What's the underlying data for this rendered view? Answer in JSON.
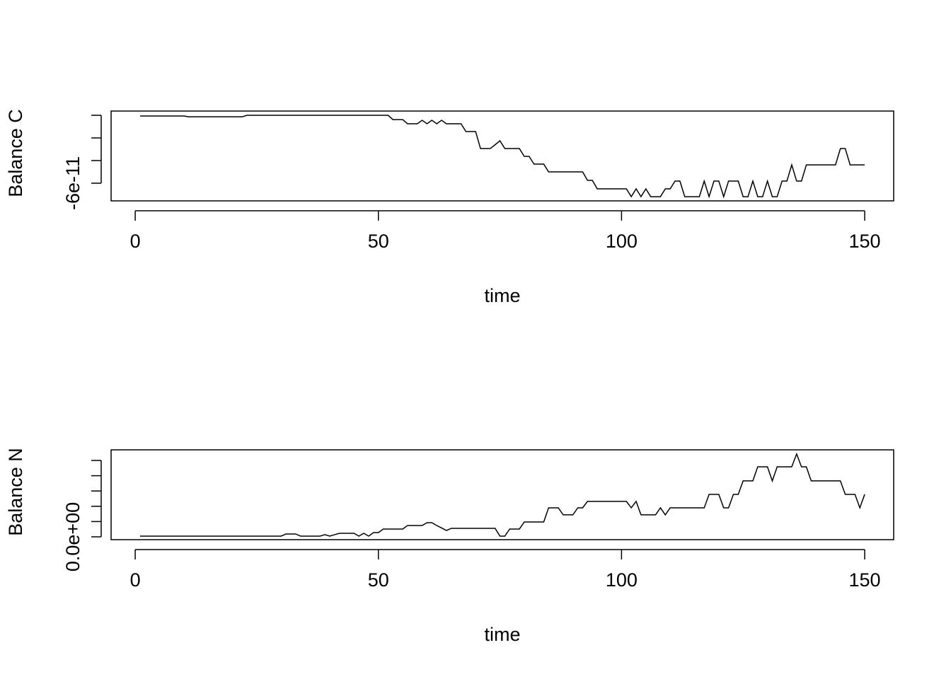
{
  "chart_data": [
    {
      "type": "line",
      "ylabel": "Balance C",
      "xlabel": "time",
      "x": [
        1,
        2,
        3,
        4,
        5,
        6,
        7,
        8,
        9,
        10,
        11,
        12,
        13,
        14,
        15,
        16,
        17,
        18,
        19,
        20,
        21,
        22,
        23,
        24,
        25,
        26,
        27,
        28,
        29,
        30,
        31,
        32,
        33,
        34,
        35,
        36,
        37,
        38,
        39,
        40,
        41,
        42,
        43,
        44,
        45,
        46,
        47,
        48,
        49,
        50,
        51,
        52,
        53,
        54,
        55,
        56,
        57,
        58,
        59,
        60,
        61,
        62,
        63,
        64,
        65,
        66,
        67,
        68,
        69,
        70,
        71,
        72,
        73,
        74,
        75,
        76,
        77,
        78,
        79,
        80,
        81,
        82,
        83,
        84,
        85,
        86,
        87,
        88,
        89,
        90,
        91,
        92,
        93,
        94,
        95,
        96,
        97,
        98,
        99,
        100,
        101,
        102,
        103,
        104,
        105,
        106,
        107,
        108,
        109,
        110,
        111,
        112,
        113,
        114,
        115,
        116,
        117,
        118,
        119,
        120,
        121,
        122,
        123,
        124,
        125,
        126,
        127,
        128,
        129,
        130,
        131,
        132,
        133,
        134,
        135,
        136,
        137,
        138,
        139,
        140,
        141,
        142,
        143,
        144,
        145,
        146,
        147,
        148,
        149,
        150
      ],
      "series": [
        {
          "color": "#000000",
          "values": [
            -6e-13,
            -6e-13,
            -6e-13,
            -6e-13,
            -6e-13,
            -6e-13,
            -6e-13,
            -6e-13,
            -6e-13,
            -6e-13,
            -1.3e-12,
            -1.3e-12,
            -1.3e-12,
            -1.3e-12,
            -1.3e-12,
            -1.3e-12,
            -1.3e-12,
            -1.3e-12,
            -1.3e-12,
            -1.3e-12,
            -1.3e-12,
            -1.3e-12,
            0,
            0,
            0,
            0,
            0,
            0,
            0,
            0,
            0,
            0,
            0,
            0,
            0,
            0,
            0,
            0,
            0,
            0,
            0,
            0,
            0,
            0,
            0,
            0,
            0,
            0,
            0,
            0,
            0,
            0,
            -3.8e-12,
            -3.8e-12,
            -3.8e-12,
            -7.5e-12,
            -7.5e-12,
            -7.5e-12,
            -4.4e-12,
            -7.5e-12,
            -4.4e-12,
            -7.5e-12,
            -4.4e-12,
            -7.5e-12,
            -7.5e-12,
            -7.5e-12,
            -7.5e-12,
            -1.44e-11,
            -1.44e-11,
            -1.44e-11,
            -2.94e-11,
            -2.94e-11,
            -2.94e-11,
            -2.6e-11,
            -2.25e-11,
            -2.94e-11,
            -2.94e-11,
            -2.94e-11,
            -2.94e-11,
            -3.63e-11,
            -3.63e-11,
            -4.31e-11,
            -4.31e-11,
            -4.31e-11,
            -5e-11,
            -5e-11,
            -5e-11,
            -5e-11,
            -5e-11,
            -5e-11,
            -5e-11,
            -5e-11,
            -5.75e-11,
            -5.75e-11,
            -6.5e-11,
            -6.5e-11,
            -6.5e-11,
            -6.5e-11,
            -6.5e-11,
            -6.5e-11,
            -6.5e-11,
            -7.19e-11,
            -6.5e-11,
            -7.19e-11,
            -6.5e-11,
            -7.19e-11,
            -7.19e-11,
            -7.19e-11,
            -6.5e-11,
            -6.5e-11,
            -5.81e-11,
            -5.81e-11,
            -7.19e-11,
            -7.19e-11,
            -7.19e-11,
            -7.19e-11,
            -5.81e-11,
            -7.19e-11,
            -5.81e-11,
            -5.81e-11,
            -7.19e-11,
            -5.81e-11,
            -5.81e-11,
            -5.81e-11,
            -7.19e-11,
            -7.19e-11,
            -5.81e-11,
            -7.19e-11,
            -7.19e-11,
            -5.81e-11,
            -7.19e-11,
            -7.19e-11,
            -5.81e-11,
            -5.81e-11,
            -4.38e-11,
            -5.81e-11,
            -5.81e-11,
            -4.38e-11,
            -4.38e-11,
            -4.38e-11,
            -4.38e-11,
            -4.38e-11,
            -4.38e-11,
            -4.38e-11,
            -2.94e-11,
            -2.94e-11,
            -4.38e-11,
            -4.38e-11,
            -4.38e-11,
            -4.38e-11
          ]
        }
      ],
      "xlim": [
        -4.96,
        155.96
      ],
      "xticks": [
        0,
        50,
        100,
        150
      ],
      "ylim": [
        -7.56e-11,
        3.75e-12
      ],
      "yticks": [
        -6e-11,
        {
          "value": -4e-11,
          "label": null
        },
        {
          "value": -2e-11,
          "label": null
        },
        {
          "value": 0,
          "label": null
        }
      ]
    },
    {
      "type": "line",
      "ylabel": "Balance N",
      "xlabel": "time",
      "x": [
        1,
        2,
        3,
        4,
        5,
        6,
        7,
        8,
        9,
        10,
        11,
        12,
        13,
        14,
        15,
        16,
        17,
        18,
        19,
        20,
        21,
        22,
        23,
        24,
        25,
        26,
        27,
        28,
        29,
        30,
        31,
        32,
        33,
        34,
        35,
        36,
        37,
        38,
        39,
        40,
        41,
        42,
        43,
        44,
        45,
        46,
        47,
        48,
        49,
        50,
        51,
        52,
        53,
        54,
        55,
        56,
        57,
        58,
        59,
        60,
        61,
        62,
        63,
        64,
        65,
        66,
        67,
        68,
        69,
        70,
        71,
        72,
        73,
        74,
        75,
        76,
        77,
        78,
        79,
        80,
        81,
        82,
        83,
        84,
        85,
        86,
        87,
        88,
        89,
        90,
        91,
        92,
        93,
        94,
        95,
        96,
        97,
        98,
        99,
        100,
        101,
        102,
        103,
        104,
        105,
        106,
        107,
        108,
        109,
        110,
        111,
        112,
        113,
        114,
        115,
        116,
        117,
        118,
        119,
        120,
        121,
        122,
        123,
        124,
        125,
        126,
        127,
        128,
        129,
        130,
        131,
        132,
        133,
        134,
        135,
        136,
        137,
        138,
        139,
        140,
        141,
        142,
        143,
        144,
        145,
        146,
        147,
        148,
        149,
        150
      ],
      "series": [
        {
          "color": "#000000",
          "values": [
            2.3e-13,
            2.3e-13,
            2.3e-13,
            2.3e-13,
            2.3e-13,
            2.3e-13,
            2.3e-13,
            2.3e-13,
            2.3e-13,
            2.3e-13,
            2.3e-13,
            2.3e-13,
            2.3e-13,
            2.3e-13,
            2.3e-13,
            2.3e-13,
            2.3e-13,
            2.3e-13,
            2.3e-13,
            2.3e-13,
            2.3e-13,
            2.3e-13,
            2.3e-13,
            2.3e-13,
            2.3e-13,
            2.3e-13,
            2.3e-13,
            2.3e-13,
            2.3e-13,
            2.3e-13,
            9.3e-13,
            9.3e-13,
            9.3e-13,
            2.3e-13,
            2.3e-13,
            2.3e-13,
            2.3e-13,
            2.3e-13,
            7e-13,
            2.3e-13,
            7e-13,
            1.16e-12,
            1.16e-12,
            1.16e-12,
            1.16e-12,
            2.3e-13,
            1.16e-12,
            2.3e-13,
            1.39e-12,
            1.39e-12,
            2.55e-12,
            2.55e-12,
            2.55e-12,
            2.55e-12,
            2.55e-12,
            3.7e-12,
            3.7e-12,
            3.7e-12,
            3.7e-12,
            4.63e-12,
            4.63e-12,
            3.7e-12,
            2.9e-12,
            2.08e-12,
            2.78e-12,
            2.78e-12,
            2.78e-12,
            2.78e-12,
            2.78e-12,
            2.78e-12,
            2.78e-12,
            2.78e-12,
            2.78e-12,
            2.78e-12,
            2.3e-13,
            2.3e-13,
            2.55e-12,
            2.55e-12,
            2.55e-12,
            4.86e-12,
            4.86e-12,
            4.86e-12,
            4.86e-12,
            4.86e-12,
            9.5e-12,
            9.5e-12,
            9.5e-12,
            7.2e-12,
            7.2e-12,
            7.2e-12,
            9.5e-12,
            9.5e-12,
            1.16e-11,
            1.16e-11,
            1.16e-11,
            1.16e-11,
            1.16e-11,
            1.16e-11,
            1.16e-11,
            1.16e-11,
            1.16e-11,
            9.5e-12,
            1.16e-11,
            7.2e-12,
            7.2e-12,
            7.2e-12,
            7.2e-12,
            9.5e-12,
            7.2e-12,
            9.5e-12,
            9.5e-12,
            9.5e-12,
            9.5e-12,
            9.5e-12,
            9.5e-12,
            9.5e-12,
            9.5e-12,
            1.39e-11,
            1.39e-11,
            1.39e-11,
            9.5e-12,
            9.5e-12,
            1.39e-11,
            1.39e-11,
            1.83e-11,
            1.83e-11,
            1.83e-11,
            2.29e-11,
            2.29e-11,
            2.29e-11,
            1.83e-11,
            2.29e-11,
            2.29e-11,
            2.29e-11,
            2.29e-11,
            2.71e-11,
            2.29e-11,
            2.29e-11,
            1.83e-11,
            1.83e-11,
            1.83e-11,
            1.83e-11,
            1.83e-11,
            1.83e-11,
            1.83e-11,
            1.39e-11,
            1.39e-11,
            1.39e-11,
            9.5e-12,
            1.39e-11
          ]
        }
      ],
      "xlim": [
        -4.96,
        155.96
      ],
      "xticks": [
        0,
        50,
        100,
        150
      ],
      "ylim": [
        -9.3e-13,
        2.847e-11
      ],
      "yticks": [
        {
          "value": 0,
          "label": "0.0e+00"
        },
        {
          "value": 5e-12,
          "label": null
        },
        {
          "value": 1e-11,
          "label": null
        },
        {
          "value": 1.5e-11,
          "label": null
        },
        {
          "value": 2e-11,
          "label": null
        },
        {
          "value": 2.5e-11,
          "label": null
        }
      ]
    }
  ]
}
